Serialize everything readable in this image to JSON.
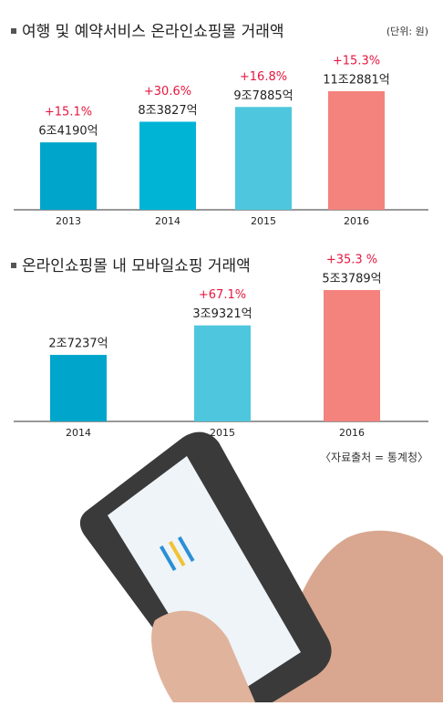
{
  "chart_data": [
    {
      "type": "bar",
      "title": "여행 및 예약서비스 온라인쇼핑몰 거래액",
      "unit_label": "(단위: 원)",
      "categories": [
        "2013",
        "2014",
        "2015",
        "2016"
      ],
      "values": [
        6419000000000,
        8382700000000,
        9788500000000,
        11288100000000
      ],
      "value_labels": [
        "6조4190억",
        "8조3827억",
        "9조7885억",
        "11조2881억"
      ],
      "growth_labels": [
        "+15.1%",
        "+30.6%",
        "+16.8%",
        "+15.3%"
      ],
      "colors": [
        "#00a5cb",
        "#00b4d6",
        "#4ec7de",
        "#f4827d"
      ]
    },
    {
      "type": "bar",
      "title": "온라인쇼핑몰 내 모바일쇼핑 거래액",
      "categories": [
        "2014",
        "2015",
        "2016"
      ],
      "values": [
        2723700000000,
        3932100000000,
        5378900000000
      ],
      "value_labels": [
        "2조7237억",
        "3조9321억",
        "5조3789억"
      ],
      "growth_labels": [
        "+67.1%",
        "+35.3 %"
      ],
      "colors": [
        "#00a5cb",
        "#4ec7de",
        "#f4827d"
      ],
      "source": "〈자료출처 = 통계청〉"
    }
  ]
}
